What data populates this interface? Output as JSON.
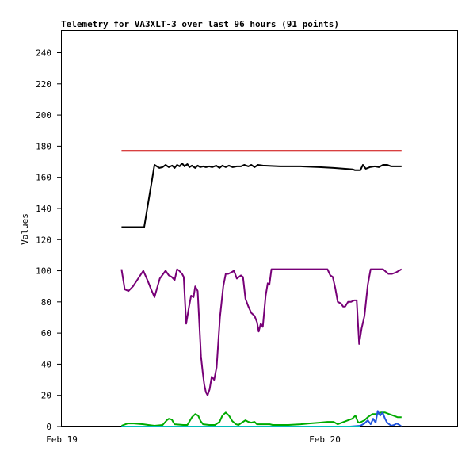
{
  "chart_data": {
    "type": "line",
    "title": "Telemetry for VA3XLT-3 over last 96 hours (91 points)",
    "ylabel": "Values",
    "xlabel": "",
    "x_ticks": [
      "Feb 19",
      "Feb 20"
    ],
    "y_ticks": [
      0,
      20,
      40,
      60,
      80,
      100,
      120,
      140,
      160,
      180,
      200,
      220,
      240
    ],
    "ylim": [
      0,
      254
    ],
    "grid": false,
    "legend": "none",
    "time_window_hours": 96,
    "series": [
      {
        "color": "#cc0000",
        "points": [
          [
            14.5,
            177
          ],
          [
            82.5,
            177
          ]
        ]
      },
      {
        "color": "#000000",
        "points": [
          [
            14.5,
            128
          ],
          [
            20.0,
            128
          ],
          [
            22.5,
            168
          ],
          [
            23.7,
            166
          ],
          [
            24.5,
            166.5
          ],
          [
            25.2,
            168
          ],
          [
            26.0,
            166.5
          ],
          [
            26.8,
            167.5
          ],
          [
            27.4,
            166
          ],
          [
            28.0,
            168
          ],
          [
            28.6,
            167
          ],
          [
            29.2,
            169
          ],
          [
            29.8,
            167
          ],
          [
            30.5,
            168.5
          ],
          [
            31.0,
            166.5
          ],
          [
            31.6,
            167.5
          ],
          [
            32.4,
            166
          ],
          [
            33.0,
            167.5
          ],
          [
            33.6,
            166.5
          ],
          [
            34.3,
            167
          ],
          [
            35.0,
            166.5
          ],
          [
            35.8,
            167
          ],
          [
            36.5,
            166.5
          ],
          [
            37.5,
            167.5
          ],
          [
            38.3,
            166
          ],
          [
            39.0,
            167.5
          ],
          [
            39.8,
            166.5
          ],
          [
            40.6,
            167.5
          ],
          [
            41.5,
            166.5
          ],
          [
            42.5,
            167
          ],
          [
            43.5,
            167
          ],
          [
            44.3,
            168
          ],
          [
            45.3,
            167
          ],
          [
            46.0,
            168
          ],
          [
            46.8,
            166.5
          ],
          [
            47.6,
            168
          ],
          [
            48.8,
            167.5
          ],
          [
            53.0,
            167
          ],
          [
            58.0,
            167
          ],
          [
            62.5,
            166.5
          ],
          [
            66.0,
            166
          ],
          [
            68.5,
            165.5
          ],
          [
            70.7,
            165
          ],
          [
            71.2,
            164.5
          ],
          [
            72.5,
            164.5
          ],
          [
            73.1,
            168
          ],
          [
            73.8,
            165.5
          ],
          [
            74.8,
            166.5
          ],
          [
            76.0,
            167
          ],
          [
            77.0,
            166.5
          ],
          [
            78.0,
            168
          ],
          [
            79.0,
            168
          ],
          [
            80.0,
            167
          ],
          [
            82.5,
            167
          ]
        ]
      },
      {
        "color": "#770077",
        "points": [
          [
            14.5,
            101
          ],
          [
            15.3,
            88
          ],
          [
            16.2,
            87
          ],
          [
            17.3,
            90
          ],
          [
            19.8,
            100
          ],
          [
            20.8,
            94
          ],
          [
            21.7,
            88
          ],
          [
            22.5,
            83
          ],
          [
            23.8,
            95
          ],
          [
            25.2,
            100
          ],
          [
            26.0,
            97
          ],
          [
            26.7,
            96
          ],
          [
            27.4,
            94
          ],
          [
            28.0,
            101
          ],
          [
            28.5,
            100
          ],
          [
            29.2,
            98
          ],
          [
            29.6,
            96
          ],
          [
            30.2,
            66
          ],
          [
            30.9,
            77
          ],
          [
            31.4,
            84
          ],
          [
            32.0,
            83
          ],
          [
            32.4,
            90
          ],
          [
            33.0,
            87
          ],
          [
            33.4,
            66
          ],
          [
            33.8,
            45
          ],
          [
            34.2,
            35
          ],
          [
            34.6,
            27
          ],
          [
            35.0,
            22
          ],
          [
            35.4,
            20
          ],
          [
            35.9,
            24
          ],
          [
            36.4,
            32
          ],
          [
            37.0,
            30
          ],
          [
            37.6,
            38
          ],
          [
            38.4,
            70
          ],
          [
            39.2,
            90
          ],
          [
            39.8,
            98
          ],
          [
            40.4,
            98
          ],
          [
            41.2,
            99
          ],
          [
            41.8,
            100
          ],
          [
            42.5,
            95
          ],
          [
            43.0,
            96
          ],
          [
            43.5,
            97
          ],
          [
            44.0,
            96
          ],
          [
            44.6,
            82
          ],
          [
            45.3,
            77
          ],
          [
            46.0,
            73
          ],
          [
            46.8,
            71
          ],
          [
            47.4,
            67
          ],
          [
            47.8,
            61
          ],
          [
            48.3,
            66
          ],
          [
            48.8,
            64
          ],
          [
            49.5,
            84
          ],
          [
            50.0,
            92
          ],
          [
            50.4,
            91
          ],
          [
            50.9,
            101
          ],
          [
            59.0,
            101
          ],
          [
            64.5,
            101
          ],
          [
            65.2,
            97
          ],
          [
            65.8,
            96
          ],
          [
            66.4,
            89
          ],
          [
            67.0,
            80
          ],
          [
            67.8,
            79
          ],
          [
            68.3,
            77
          ],
          [
            68.8,
            77
          ],
          [
            69.5,
            80
          ],
          [
            70.2,
            80
          ],
          [
            71.0,
            81
          ],
          [
            71.6,
            81
          ],
          [
            72.2,
            53
          ],
          [
            72.8,
            63
          ],
          [
            73.5,
            71
          ],
          [
            74.3,
            91
          ],
          [
            75.0,
            101
          ],
          [
            76.5,
            101
          ],
          [
            78.0,
            101
          ],
          [
            79.3,
            98
          ],
          [
            80.2,
            98
          ],
          [
            81.2,
            99
          ],
          [
            82.5,
            101
          ]
        ]
      },
      {
        "color": "#00aa00",
        "points": [
          [
            14.5,
            0.5
          ],
          [
            16.0,
            2
          ],
          [
            17.5,
            2
          ],
          [
            19.8,
            1.5
          ],
          [
            21.0,
            1
          ],
          [
            22.5,
            0.5
          ],
          [
            24.5,
            1
          ],
          [
            25.5,
            4
          ],
          [
            26.0,
            5
          ],
          [
            26.7,
            4.5
          ],
          [
            27.4,
            1.5
          ],
          [
            29.5,
            1
          ],
          [
            30.5,
            1
          ],
          [
            31.6,
            6
          ],
          [
            32.4,
            8
          ],
          [
            33.1,
            7
          ],
          [
            33.7,
            3.5
          ],
          [
            34.3,
            1.5
          ],
          [
            35.8,
            1
          ],
          [
            37.2,
            1
          ],
          [
            38.3,
            3
          ],
          [
            39.0,
            7
          ],
          [
            39.8,
            9
          ],
          [
            40.6,
            7
          ],
          [
            41.4,
            3.5
          ],
          [
            42.3,
            1.5
          ],
          [
            42.9,
            1
          ],
          [
            44.0,
            3
          ],
          [
            44.6,
            4
          ],
          [
            45.3,
            3
          ],
          [
            46.0,
            2.5
          ],
          [
            46.8,
            3
          ],
          [
            47.4,
            1.5
          ],
          [
            49.0,
            1.5
          ],
          [
            50.5,
            1.5
          ],
          [
            51.2,
            1
          ],
          [
            55.0,
            1
          ],
          [
            58.0,
            1.5
          ],
          [
            60.0,
            2
          ],
          [
            62.5,
            2.5
          ],
          [
            64.5,
            3
          ],
          [
            66.0,
            3
          ],
          [
            67.0,
            1.5
          ],
          [
            68.0,
            2.5
          ],
          [
            69.5,
            4
          ],
          [
            70.5,
            5
          ],
          [
            71.3,
            7
          ],
          [
            71.9,
            3
          ],
          [
            72.3,
            2.5
          ],
          [
            73.5,
            4
          ],
          [
            74.3,
            6
          ],
          [
            75.4,
            8
          ],
          [
            76.5,
            8
          ],
          [
            77.5,
            9
          ],
          [
            78.5,
            9
          ],
          [
            79.5,
            8
          ],
          [
            80.5,
            7
          ],
          [
            81.5,
            6
          ],
          [
            82.5,
            6
          ]
        ]
      },
      {
        "color": "#2255dd",
        "points": [
          [
            14.5,
            0
          ],
          [
            30.0,
            0
          ],
          [
            40.0,
            0
          ],
          [
            50.0,
            0
          ],
          [
            60.0,
            0
          ],
          [
            70.0,
            0
          ],
          [
            72.5,
            0.5
          ],
          [
            73.5,
            2
          ],
          [
            74.3,
            4
          ],
          [
            75.0,
            1.5
          ],
          [
            75.6,
            5
          ],
          [
            76.2,
            2.5
          ],
          [
            76.7,
            10
          ],
          [
            77.3,
            7
          ],
          [
            77.9,
            9
          ],
          [
            78.5,
            5
          ],
          [
            79.0,
            2.5
          ],
          [
            79.5,
            1.5
          ],
          [
            80.0,
            0.5
          ],
          [
            80.7,
            1
          ],
          [
            81.3,
            2
          ],
          [
            82.0,
            1
          ],
          [
            82.5,
            0
          ]
        ]
      },
      {
        "color": "#00bbbb",
        "points": [
          [
            14.5,
            0
          ],
          [
            40.0,
            0
          ],
          [
            60.0,
            0
          ],
          [
            72.5,
            0
          ]
        ]
      }
    ]
  }
}
